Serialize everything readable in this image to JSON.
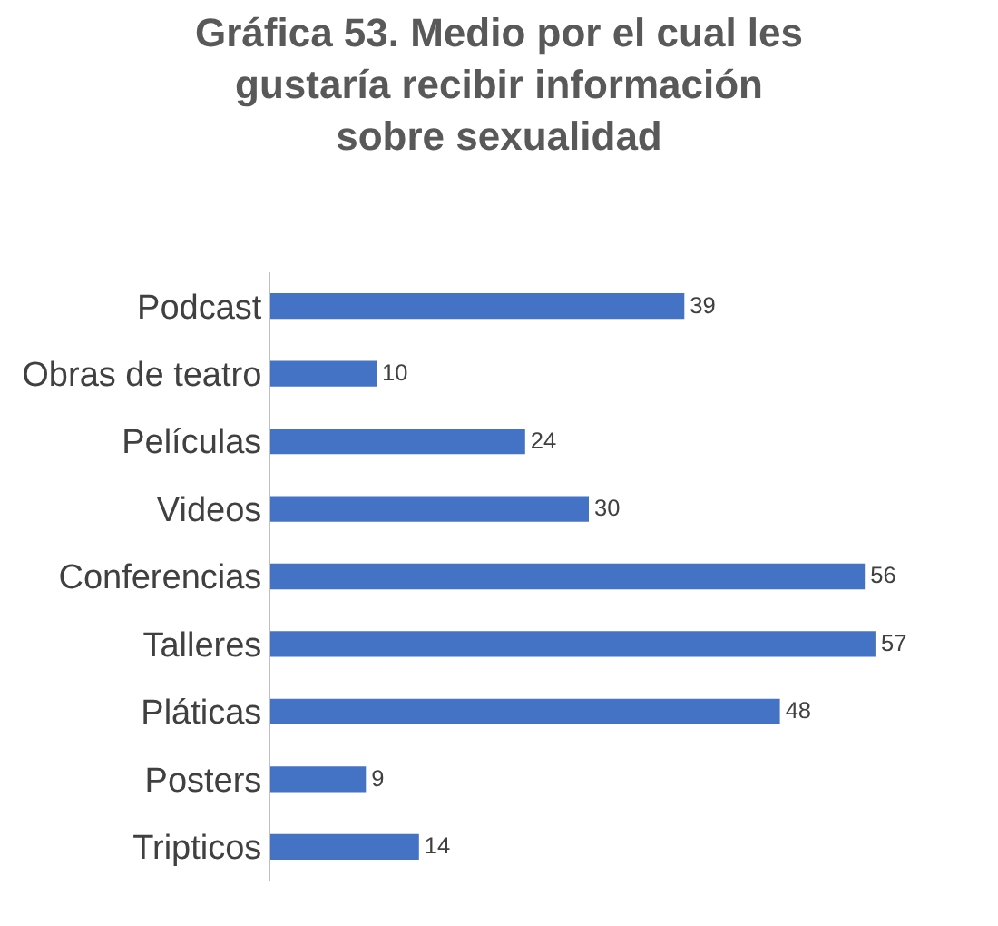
{
  "chart_data": {
    "type": "bar",
    "orientation": "horizontal",
    "title": "Gráfica 53. Medio por el cual les gustaría recibir información sobre sexualidad",
    "categories": [
      "Podcast",
      "Obras de teatro",
      "Películas",
      "Videos",
      "Conferencias",
      "Talleres",
      "Pláticas",
      "Posters",
      "Tripticos"
    ],
    "values": [
      39,
      10,
      24,
      30,
      56,
      57,
      48,
      9,
      14
    ],
    "color": "#4472c4",
    "data_labels": true,
    "grid": false,
    "legend": false
  }
}
